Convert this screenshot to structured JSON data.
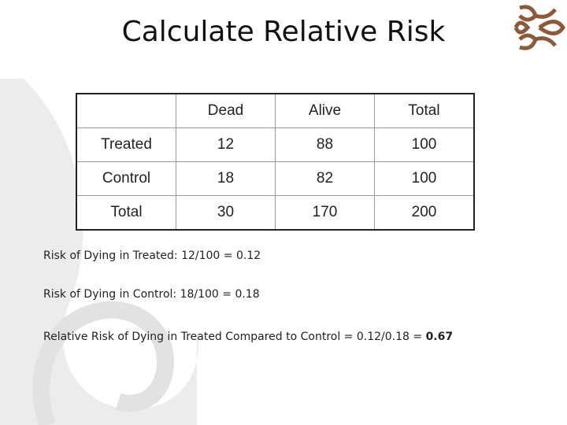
{
  "title": "Calculate Relative Risk",
  "table": {
    "header": [
      "",
      "Dead",
      "Alive",
      "Total"
    ],
    "rows": [
      [
        "Treated",
        "12",
        "88",
        "100"
      ],
      [
        "Control",
        "18",
        "82",
        "100"
      ],
      [
        "Total",
        "30",
        "170",
        "200"
      ]
    ]
  },
  "notes": [
    {
      "text": "Risk of Dying in Treated: 12/100 = 0.12"
    },
    {
      "text": "Risk of Dying in Control: 18/100 = 0.18"
    },
    {
      "text": "Relative Risk of Dying in Treated Compared to Control = 0.12/0.18 = ",
      "bold": "0.67"
    }
  ]
}
